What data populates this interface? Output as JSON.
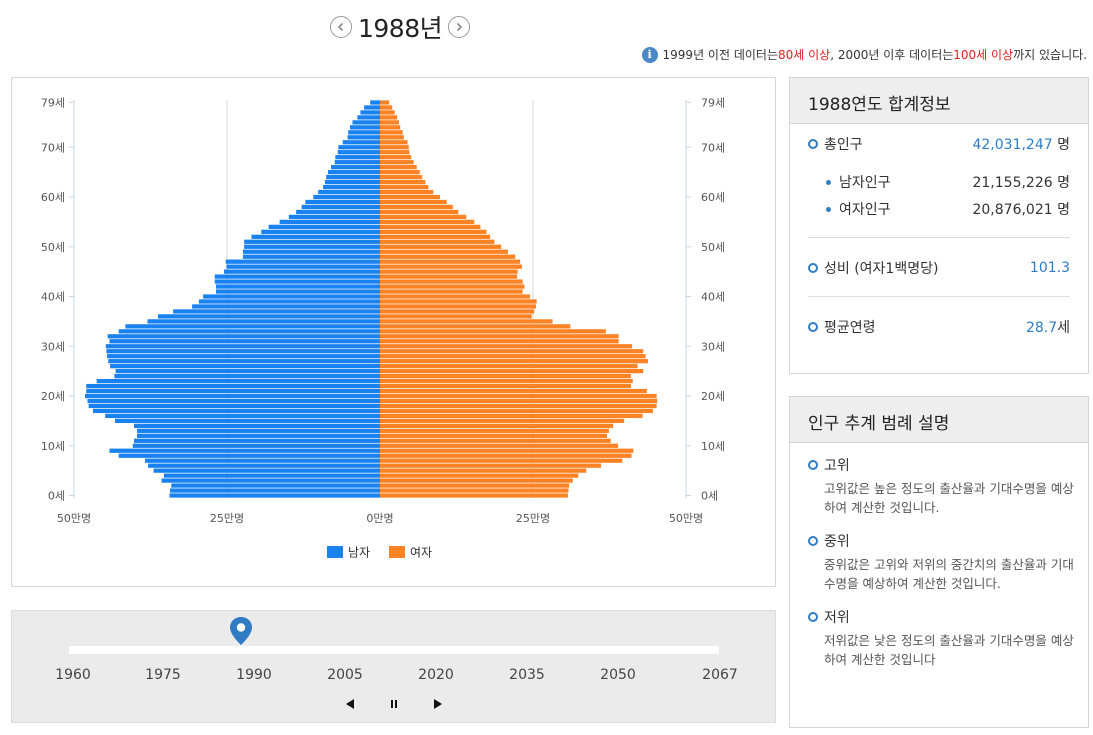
{
  "header": {
    "year_title": "1988년",
    "note_prefix": "1999년 이전 데이터는 ",
    "note_red1": "80세 이상",
    "note_mid": ", 2000년 이후 데이터는 ",
    "note_red2": "100세 이상",
    "note_suffix": "까지 있습니다."
  },
  "chart_data": {
    "type": "bar",
    "orientation": "horizontal-pyramid",
    "x_tick_labels": [
      "50만명",
      "25만명",
      "0만명",
      "25만명",
      "50만명"
    ],
    "y_tick_labels": [
      "0세",
      "10세",
      "20세",
      "30세",
      "40세",
      "50세",
      "60세",
      "70세",
      "79세"
    ],
    "xlim": [
      -500000,
      500000
    ],
    "ylim": [
      0,
      79
    ],
    "legend_position": "bottom",
    "colors": {
      "male": "#1a82f0",
      "female": "#fc8325"
    },
    "series": [
      {
        "name": "남자",
        "values": [
          344000,
          343000,
          341000,
          357000,
          353000,
          370000,
          379000,
          384000,
          427000,
          442000,
          404000,
          402000,
          397000,
          397000,
          402000,
          433000,
          449000,
          469000,
          476000,
          478000,
          482000,
          480000,
          480000,
          463000,
          434000,
          432000,
          441000,
          444000,
          446000,
          447000,
          448000,
          442000,
          445000,
          427000,
          416000,
          380000,
          363000,
          338000,
          307000,
          296000,
          289000,
          268000,
          268000,
          270000,
          270000,
          255000,
          251000,
          252000,
          224000,
          224000,
          222000,
          222000,
          210000,
          194000,
          182000,
          164000,
          149000,
          137000,
          128000,
          122000,
          109000,
          101000,
          93000,
          90000,
          88000,
          85000,
          80000,
          74000,
          73000,
          69000,
          68000,
          61000,
          53000,
          52000,
          49000,
          45000,
          37000,
          32000,
          26000,
          16000
        ]
      },
      {
        "name": "여자",
        "values": [
          307000,
          308000,
          309000,
          315000,
          324000,
          337000,
          361000,
          396000,
          411000,
          414000,
          389000,
          377000,
          371000,
          374000,
          381000,
          399000,
          429000,
          446000,
          452000,
          453000,
          452000,
          436000,
          410000,
          413000,
          410000,
          430000,
          421000,
          438000,
          434000,
          430000,
          412000,
          390000,
          390000,
          369000,
          311000,
          282000,
          248000,
          252000,
          255000,
          256000,
          245000,
          233000,
          236000,
          233000,
          224000,
          225000,
          232000,
          229000,
          221000,
          209000,
          198000,
          187000,
          180000,
          174000,
          164000,
          154000,
          141000,
          128000,
          119000,
          109000,
          98000,
          87000,
          79000,
          74000,
          69000,
          65000,
          60000,
          55000,
          51000,
          48000,
          47000,
          45000,
          39000,
          37000,
          33000,
          31000,
          28000,
          24000,
          20000,
          15000
        ]
      }
    ]
  },
  "slider": {
    "years": [
      "1960",
      "1975",
      "1990",
      "2005",
      "2020",
      "2035",
      "2050",
      "2067"
    ],
    "current": 1988,
    "range": [
      1960,
      2067
    ]
  },
  "summary": {
    "title": "1988연도 합계정보",
    "total_label": "총인구",
    "total_value": "42,031,247",
    "total_unit": "명",
    "male_label": "남자인구",
    "male_value": "21,155,226",
    "male_unit": "명",
    "female_label": "여자인구",
    "female_value": "20,876,021",
    "female_unit": "명",
    "ratio_label": "성비 (여자1백명당)",
    "ratio_value": "101.3",
    "age_label": "평균연령",
    "age_value": "28.7",
    "age_unit": "세"
  },
  "legend_panel": {
    "title": "인구 추계 범례 설명",
    "items": [
      {
        "title": "고위",
        "desc": "고위값은 높은 정도의 출산율과 기대수명을 예상하여 계산한 것입니다."
      },
      {
        "title": "중위",
        "desc": "중위값은 고위와 저위의 중간치의 출산율과 기대수명을 예상하여 계산한 것입니다."
      },
      {
        "title": "저위",
        "desc": "저위값은 낮은 정도의 출산율과 기대수명을 예상하여 계산한 것입니다"
      }
    ]
  }
}
